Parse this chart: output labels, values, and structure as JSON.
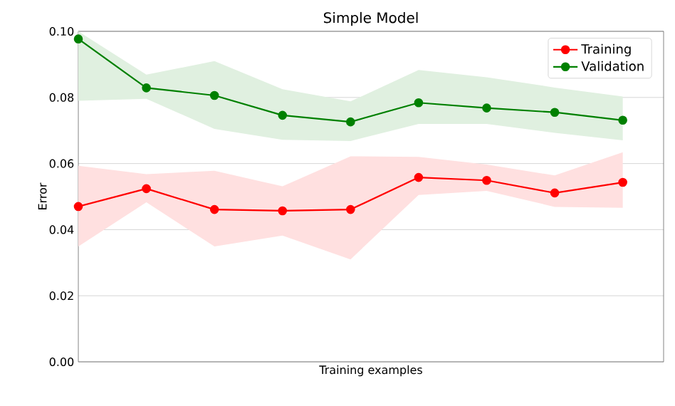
{
  "chart_data": {
    "type": "line",
    "title": "Simple Model",
    "xlabel": "Training examples",
    "ylabel": "Error",
    "categories": [
      null,
      null,
      null,
      null,
      null,
      null,
      null,
      null,
      null
    ],
    "ylim": [
      0,
      0.1
    ],
    "yticks": [
      {
        "value": 0,
        "label": "0.00"
      },
      {
        "value": 0.02,
        "label": "0.02"
      },
      {
        "value": 0.04,
        "label": "0.04"
      },
      {
        "value": 0.06,
        "label": "0.06"
      },
      {
        "value": 0.08,
        "label": "0.08"
      },
      {
        "value": 0.1,
        "label": "0.10"
      }
    ],
    "tick_labels": "y",
    "grid": "y",
    "legend": "top right",
    "marker": "circle",
    "line_style": "solid",
    "series": [
      {
        "name": "Training",
        "color": "#ff0000",
        "values": [
          0.047,
          0.0524,
          0.0461,
          0.0457,
          0.0461,
          0.0558,
          0.0549,
          0.0511,
          0.0543
        ],
        "lower": [
          0.0349,
          0.0483,
          0.0349,
          0.0382,
          0.031,
          0.0505,
          0.0517,
          0.0469,
          0.0466
        ],
        "upper": [
          0.0593,
          0.0568,
          0.0578,
          0.0531,
          0.0622,
          0.062,
          0.0597,
          0.0564,
          0.0634
        ]
      },
      {
        "name": "Validation",
        "color": "#008000",
        "values": [
          0.0977,
          0.0829,
          0.0806,
          0.0746,
          0.0726,
          0.0784,
          0.0768,
          0.0755,
          0.0731
        ],
        "lower": [
          0.079,
          0.0796,
          0.0705,
          0.0672,
          0.0668,
          0.072,
          0.072,
          0.0693,
          0.067
        ],
        "upper": [
          0.1,
          0.0869,
          0.091,
          0.0825,
          0.0788,
          0.0883,
          0.0861,
          0.083,
          0.0803
        ]
      }
    ]
  }
}
